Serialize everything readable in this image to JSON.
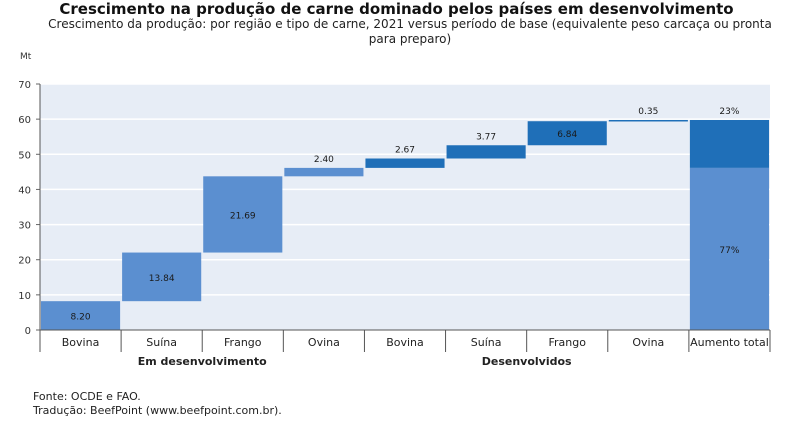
{
  "chart_data": {
    "type": "bar",
    "subtype": "waterfall",
    "title": "Crescimento na produção de carne dominado pelos países em desenvolvimento",
    "subtitle": "Crescimento da produção: por região e tipo de carne, 2021 versus período de base (equivalente peso carcaça ou pronta para preparo)",
    "ylabel": "Mt",
    "ylim": [
      0,
      70
    ],
    "yticks": [
      0,
      10,
      20,
      30,
      40,
      50,
      60,
      70
    ],
    "categories": [
      "Bovina",
      "Suína",
      "Frango",
      "Ovina",
      "Bovina",
      "Suína",
      "Frango",
      "Ovina",
      "Aumento total"
    ],
    "groups": [
      {
        "label": "Em desenvolvimento",
        "categories": [
          "Bovina",
          "Suína",
          "Frango",
          "Ovina"
        ]
      },
      {
        "label": "Desenvolvidos",
        "categories": [
          "Bovina",
          "Suína",
          "Frango",
          "Ovina"
        ]
      }
    ],
    "increments": [
      {
        "start": 0,
        "end": 8.2,
        "label": "8.20",
        "color": "light"
      },
      {
        "start": 8.2,
        "end": 22.04,
        "label": "13.84",
        "color": "light"
      },
      {
        "start": 22.04,
        "end": 43.73,
        "label": "21.69",
        "color": "light"
      },
      {
        "start": 43.73,
        "end": 46.13,
        "label": "2.40",
        "color": "light"
      },
      {
        "start": 46.13,
        "end": 48.8,
        "label": "2.67",
        "color": "dark"
      },
      {
        "start": 48.8,
        "end": 52.57,
        "label": "3.77",
        "color": "dark"
      },
      {
        "start": 52.57,
        "end": 59.41,
        "label": "6.84",
        "color": "dark"
      },
      {
        "start": 59.41,
        "end": 59.76,
        "label": "0.35",
        "color": "dark"
      }
    ],
    "total": {
      "category": "Aumento total",
      "segments": [
        {
          "start": 0,
          "end": 46.13,
          "label": "77%",
          "color": "light"
        },
        {
          "start": 46.13,
          "end": 59.76,
          "label": "23%",
          "color": "dark"
        }
      ]
    },
    "colors": {
      "light": "#5b8fd0",
      "dark": "#1f6fb8",
      "plot_bg": "#e7edf6",
      "grid": "#ffffff"
    },
    "grid": true
  },
  "footer": {
    "source": "Fonte: OCDE e FAO.",
    "translation": "Tradução: BeefPoint (www.beefpoint.com.br)."
  }
}
